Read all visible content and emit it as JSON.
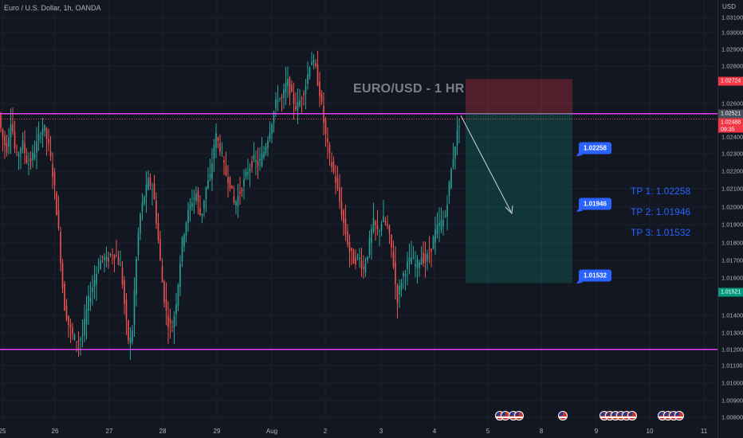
{
  "header": {
    "symbol_line": "Euro / U.S. Dollar, 1h, OANDA"
  },
  "axis": {
    "currency": "USD",
    "y_ticks": [
      "1.03100",
      "1.03000",
      "1.02900",
      "1.02800",
      "1.02600",
      "1.02400",
      "1.02300",
      "1.02200",
      "1.02100",
      "1.02000",
      "1.01900",
      "1.01800",
      "1.01700",
      "1.01600",
      "1.01400",
      "1.01300",
      "1.01200",
      "1.01100",
      "1.01000",
      "1.00900",
      "1.00800"
    ],
    "x_ticks": [
      "25",
      "26",
      "27",
      "28",
      "29",
      "Aug",
      "2",
      "3",
      "4",
      "5",
      "8",
      "9",
      "10",
      "11"
    ]
  },
  "price_tags": {
    "stop": "1.02724",
    "entry": "1.02521",
    "current": "1.02488",
    "countdown": "09:35",
    "target": "1.01521"
  },
  "watermark": "EURO/USD - 1 HR",
  "take_profits": [
    "TP 1: 1.02258",
    "TP 2: 1.01946",
    "TP 3: 1.01532"
  ],
  "tp_labels": [
    "1.02258",
    "1.01946",
    "1.01532"
  ],
  "colors": {
    "background": "#131722",
    "up": "#26a69a",
    "down": "#ef5350",
    "channel": "#e040fb",
    "accent": "#2962ff"
  },
  "chart_data": {
    "type": "candlestick",
    "symbol": "EUR/USD",
    "timeframe": "1h",
    "ylim": [
      1.0075,
      1.0315
    ],
    "trade": {
      "direction": "short",
      "entry": 1.02521,
      "stop": 1.02724,
      "targets": [
        1.02258,
        1.01946,
        1.01532
      ],
      "target": 1.01521
    },
    "horizontal_levels": [
      1.0252,
      1.0113
    ],
    "path": [
      [
        0,
        1.0245
      ],
      [
        8,
        1.023
      ],
      [
        14,
        1.025
      ],
      [
        20,
        1.0225
      ],
      [
        28,
        1.0235
      ],
      [
        35,
        1.0222
      ],
      [
        42,
        1.0228
      ],
      [
        50,
        1.024
      ],
      [
        55,
        1.0245
      ],
      [
        62,
        1.023
      ],
      [
        68,
        1.021
      ],
      [
        74,
        1.018
      ],
      [
        80,
        1.014
      ],
      [
        86,
        1.0128
      ],
      [
        92,
        1.012
      ],
      [
        98,
        1.0118
      ],
      [
        104,
        1.0122
      ],
      [
        110,
        1.014
      ],
      [
        116,
        1.015
      ],
      [
        122,
        1.016
      ],
      [
        128,
        1.0168
      ],
      [
        134,
        1.0165
      ],
      [
        140,
        1.017
      ],
      [
        146,
        1.0168
      ],
      [
        152,
        1.016
      ],
      [
        158,
        1.013
      ],
      [
        162,
        1.0115
      ],
      [
        166,
        1.0125
      ],
      [
        170,
        1.016
      ],
      [
        175,
        1.019
      ],
      [
        180,
        1.0202
      ],
      [
        186,
        1.0212
      ],
      [
        192,
        1.0208
      ],
      [
        198,
        1.018
      ],
      [
        204,
        1.015
      ],
      [
        210,
        1.013
      ],
      [
        216,
        1.0125
      ],
      [
        222,
        1.0145
      ],
      [
        228,
        1.0175
      ],
      [
        234,
        1.019
      ],
      [
        240,
        1.02
      ],
      [
        246,
        1.0205
      ],
      [
        252,
        1.019
      ],
      [
        258,
        1.0208
      ],
      [
        264,
        1.0215
      ],
      [
        270,
        1.024
      ],
      [
        276,
        1.0232
      ],
      [
        282,
        1.0218
      ],
      [
        288,
        1.0212
      ],
      [
        294,
        1.0198
      ],
      [
        300,
        1.0205
      ],
      [
        306,
        1.0212
      ],
      [
        312,
        1.022
      ],
      [
        318,
        1.0225
      ],
      [
        324,
        1.0222
      ],
      [
        330,
        1.0228
      ],
      [
        336,
        1.0238
      ],
      [
        342,
        1.025
      ],
      [
        348,
        1.0262
      ],
      [
        354,
        1.026
      ],
      [
        360,
        1.0272
      ],
      [
        366,
        1.0262
      ],
      [
        372,
        1.0255
      ],
      [
        378,
        1.0262
      ],
      [
        384,
        1.027
      ],
      [
        390,
        1.0285
      ],
      [
        396,
        1.0278
      ],
      [
        402,
        1.0262
      ],
      [
        408,
        1.024
      ],
      [
        414,
        1.0225
      ],
      [
        420,
        1.0215
      ],
      [
        426,
        1.02
      ],
      [
        432,
        1.0185
      ],
      [
        438,
        1.0172
      ],
      [
        444,
        1.0165
      ],
      [
        450,
        1.0168
      ],
      [
        456,
        1.016
      ],
      [
        462,
        1.0172
      ],
      [
        468,
        1.0188
      ],
      [
        474,
        1.0182
      ],
      [
        480,
        1.019
      ],
      [
        486,
        1.0185
      ],
      [
        492,
        1.017
      ],
      [
        498,
        1.0142
      ],
      [
        504,
        1.0155
      ],
      [
        510,
        1.0162
      ],
      [
        516,
        1.0167
      ],
      [
        522,
        1.0162
      ],
      [
        528,
        1.0168
      ],
      [
        534,
        1.0165
      ],
      [
        540,
        1.0172
      ],
      [
        546,
        1.0182
      ],
      [
        552,
        1.0187
      ],
      [
        558,
        1.019
      ],
      [
        564,
        1.0212
      ],
      [
        570,
        1.0232
      ],
      [
        578,
        1.0252
      ]
    ]
  }
}
